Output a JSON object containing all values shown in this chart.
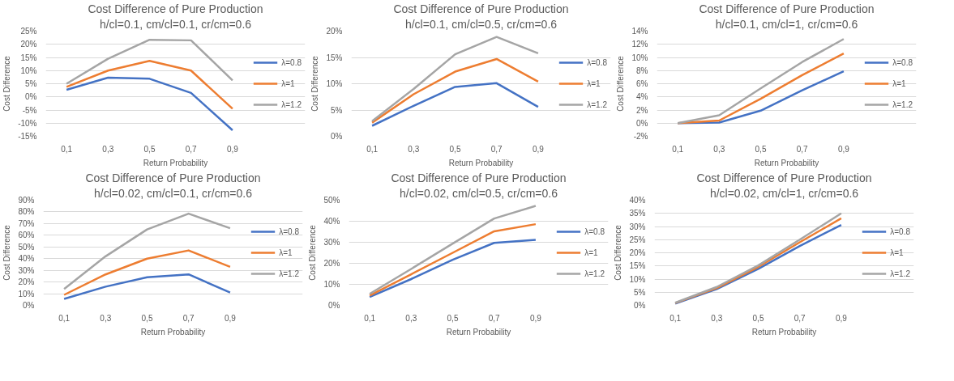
{
  "chart_data": [
    {
      "type": "line",
      "title": "Cost Difference of Pure Production",
      "subtitle": "h/cl=0.1, cm/cl=0.1, cr/cm=0.6",
      "xlabel": "Return Probability",
      "ylabel": "Cost Difference",
      "categories": [
        "0,1",
        "0,3",
        "0,5",
        "0,7",
        "0,9"
      ],
      "ylim": [
        -15,
        25
      ],
      "yticks": [
        {
          "value": -15,
          "label": "-15%"
        },
        {
          "value": -10,
          "label": "-10%"
        },
        {
          "value": -5,
          "label": "-5%"
        },
        {
          "value": 0,
          "label": "0%"
        },
        {
          "value": 5,
          "label": "5%"
        },
        {
          "value": 10,
          "label": "10%"
        },
        {
          "value": 15,
          "label": "15%"
        },
        {
          "value": 20,
          "label": "20%"
        },
        {
          "value": 25,
          "label": "25%"
        }
      ],
      "grid": "y",
      "legend": "right",
      "series": [
        {
          "name": "λ=0.8",
          "color": "#4472c4",
          "values": [
            2.7,
            7.3,
            6.9,
            1.5,
            -12.7
          ]
        },
        {
          "name": "λ=1",
          "color": "#ed7d31",
          "values": [
            3.8,
            10,
            13.7,
            10,
            -4.5
          ]
        },
        {
          "name": "λ=1.2",
          "color": "#a5a5a5",
          "values": [
            5,
            14.5,
            21.7,
            21.5,
            6.3
          ]
        }
      ]
    },
    {
      "type": "line",
      "title": "Cost Difference of Pure Production",
      "subtitle": "h/cl=0.1, cm/cl=0.5, cr/cm=0.6",
      "xlabel": "Return Probability",
      "ylabel": "Cost Difference",
      "categories": [
        "0,1",
        "0,3",
        "0,5",
        "0,7",
        "0,9"
      ],
      "ylim": [
        0,
        20
      ],
      "yticks": [
        {
          "value": 0,
          "label": "0%"
        },
        {
          "value": 5,
          "label": "5%"
        },
        {
          "value": 10,
          "label": "10%"
        },
        {
          "value": 15,
          "label": "15%"
        },
        {
          "value": 20,
          "label": "20%"
        }
      ],
      "grid": "y",
      "legend": "right",
      "series": [
        {
          "name": "λ=0.8",
          "color": "#4472c4",
          "values": [
            2,
            5.8,
            9.4,
            10.1,
            5.6
          ]
        },
        {
          "name": "λ=1",
          "color": "#ed7d31",
          "values": [
            2.6,
            8,
            12.3,
            14.7,
            10.4
          ]
        },
        {
          "name": "λ=1.2",
          "color": "#a5a5a5",
          "values": [
            2.9,
            9,
            15.6,
            18.9,
            15.8
          ]
        }
      ]
    },
    {
      "type": "line",
      "title": "Cost Difference of Pure Production",
      "subtitle": "h/cl=0.1, cm/cl=1, cr/cm=0.6",
      "xlabel": "Return Probability",
      "ylabel": "Cost Difference",
      "categories": [
        "0,1",
        "0,3",
        "0,5",
        "0,7",
        "0,9"
      ],
      "ylim": [
        -2,
        14
      ],
      "yticks": [
        {
          "value": -2,
          "label": "-2%"
        },
        {
          "value": 0,
          "label": "0%"
        },
        {
          "value": 2,
          "label": "2%"
        },
        {
          "value": 4,
          "label": "4%"
        },
        {
          "value": 6,
          "label": "6%"
        },
        {
          "value": 8,
          "label": "8%"
        },
        {
          "value": 10,
          "label": "10%"
        },
        {
          "value": 12,
          "label": "12%"
        },
        {
          "value": 14,
          "label": "14%"
        }
      ],
      "grid": "y",
      "legend": "right",
      "series": [
        {
          "name": "λ=0.8",
          "color": "#4472c4",
          "values": [
            0,
            0.1,
            1.9,
            5,
            7.9
          ]
        },
        {
          "name": "λ=1",
          "color": "#ed7d31",
          "values": [
            0,
            0.4,
            3.7,
            7.3,
            10.6
          ]
        },
        {
          "name": "λ=1.2",
          "color": "#a5a5a5",
          "values": [
            0,
            1.2,
            5.3,
            9.3,
            12.8
          ]
        }
      ]
    },
    {
      "type": "line",
      "title": "Cost Difference of Pure Production",
      "subtitle": "h/cl=0.02, cm/cl=0.1, cr/cm=0.6",
      "xlabel": "Return Probability",
      "ylabel": "Cost Difference",
      "categories": [
        "0,1",
        "0,3",
        "0,5",
        "0,7",
        "0,9"
      ],
      "ylim": [
        0,
        90
      ],
      "yticks": [
        {
          "value": 0,
          "label": "0%"
        },
        {
          "value": 10,
          "label": "10%"
        },
        {
          "value": 20,
          "label": "20%"
        },
        {
          "value": 30,
          "label": "30%"
        },
        {
          "value": 40,
          "label": "40%"
        },
        {
          "value": 50,
          "label": "50%"
        },
        {
          "value": 60,
          "label": "60%"
        },
        {
          "value": 70,
          "label": "70%"
        },
        {
          "value": 80,
          "label": "80%"
        },
        {
          "value": 90,
          "label": "90%"
        }
      ],
      "grid": "y",
      "legend": "right",
      "series": [
        {
          "name": "λ=0.8",
          "color": "#4472c4",
          "values": [
            5.5,
            16,
            24,
            26.5,
            11
          ]
        },
        {
          "name": "λ=1",
          "color": "#ed7d31",
          "values": [
            9,
            26.5,
            40,
            47,
            33
          ]
        },
        {
          "name": "λ=1.2",
          "color": "#a5a5a5",
          "values": [
            14,
            42,
            65,
            78.5,
            66
          ]
        }
      ]
    },
    {
      "type": "line",
      "title": "Cost Difference of Pure Production",
      "subtitle": "h/cl=0.02, cm/cl=0.5, cr/cm=0.6",
      "xlabel": "Return Probability",
      "ylabel": "Cost Difference",
      "categories": [
        "0,1",
        "0,3",
        "0,5",
        "0,7",
        "0,9"
      ],
      "ylim": [
        0,
        50
      ],
      "yticks": [
        {
          "value": 0,
          "label": "0%"
        },
        {
          "value": 10,
          "label": "10%"
        },
        {
          "value": 20,
          "label": "20%"
        },
        {
          "value": 30,
          "label": "30%"
        },
        {
          "value": 40,
          "label": "40%"
        },
        {
          "value": 50,
          "label": "50%"
        }
      ],
      "grid": "y",
      "legend": "right",
      "series": [
        {
          "name": "λ=0.8",
          "color": "#4472c4",
          "values": [
            4,
            12.5,
            21.7,
            29.7,
            31.2
          ]
        },
        {
          "name": "λ=1",
          "color": "#ed7d31",
          "values": [
            4.7,
            14.8,
            25,
            35.2,
            38.6
          ]
        },
        {
          "name": "λ=1.2",
          "color": "#a5a5a5",
          "values": [
            5.5,
            17.3,
            29.4,
            41.3,
            47.3
          ]
        }
      ]
    },
    {
      "type": "line",
      "title": "Cost Difference of Pure Production",
      "subtitle": "h/cl=0.02, cm/cl=1, cr/cm=0.6",
      "xlabel": "Return Probability",
      "ylabel": "Cost Difference",
      "categories": [
        "0,1",
        "0,3",
        "0,5",
        "0,7",
        "0,9"
      ],
      "ylim": [
        0,
        40
      ],
      "yticks": [
        {
          "value": 0,
          "label": "0%"
        },
        {
          "value": 5,
          "label": "5%"
        },
        {
          "value": 10,
          "label": "10%"
        },
        {
          "value": 15,
          "label": "15%"
        },
        {
          "value": 20,
          "label": "20%"
        },
        {
          "value": 25,
          "label": "25%"
        },
        {
          "value": 30,
          "label": "30%"
        },
        {
          "value": 35,
          "label": "35%"
        },
        {
          "value": 40,
          "label": "40%"
        }
      ],
      "grid": "y",
      "legend": "right",
      "series": [
        {
          "name": "λ=0.8",
          "color": "#4472c4",
          "values": [
            0.7,
            6.2,
            13.9,
            22.6,
            30.6
          ]
        },
        {
          "name": "λ=1",
          "color": "#ed7d31",
          "values": [
            0.9,
            6.6,
            14.6,
            24,
            33.1
          ]
        },
        {
          "name": "λ=1.2",
          "color": "#a5a5a5",
          "values": [
            1,
            7,
            15.2,
            25,
            35
          ]
        }
      ]
    }
  ]
}
